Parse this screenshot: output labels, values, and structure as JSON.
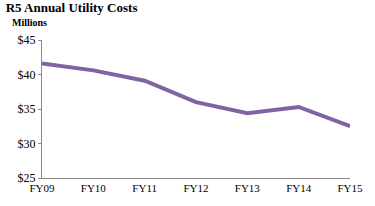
{
  "chart_data": {
    "type": "line",
    "title": "R5 Annual Utility Costs",
    "subtitle": "Millions",
    "categories": [
      "FY09",
      "FY10",
      "FY11",
      "FY12",
      "FY13",
      "FY14",
      "FY15"
    ],
    "values": [
      41.6,
      40.6,
      39.1,
      36.0,
      34.4,
      35.3,
      32.5
    ],
    "color": "#8064a2",
    "ylim": [
      25,
      45
    ],
    "yticks": [
      {
        "value": 25,
        "label": "$25"
      },
      {
        "value": 30,
        "label": "$30"
      },
      {
        "value": 35,
        "label": "$35"
      },
      {
        "value": 40,
        "label": "$40"
      },
      {
        "value": 45,
        "label": "$45"
      }
    ],
    "grid": false
  }
}
